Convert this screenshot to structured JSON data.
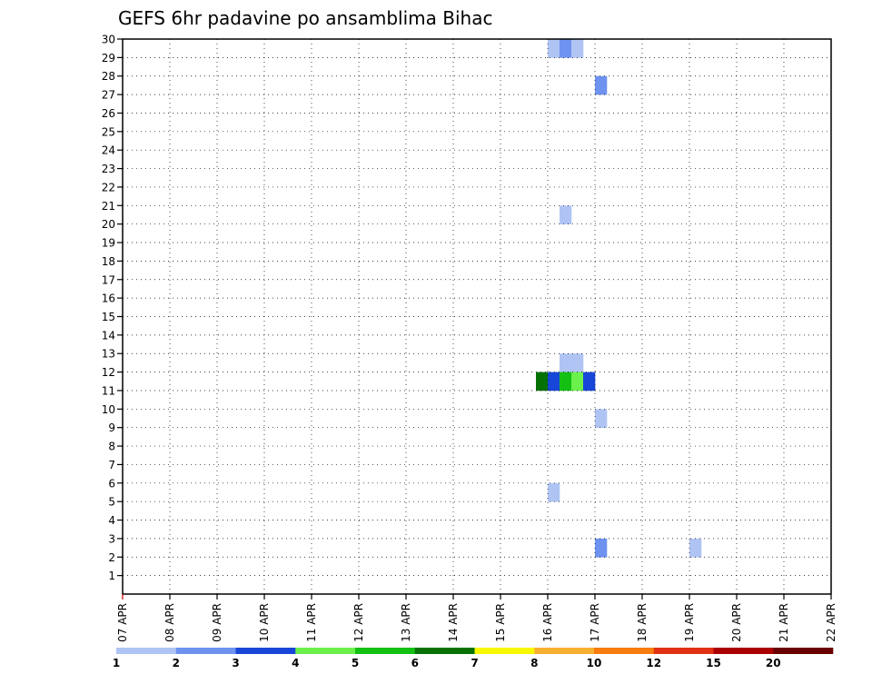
{
  "chart_data": {
    "type": "heatmap",
    "title": "GEFS 6hr padavine po ansamblima Bihac",
    "x_tick_labels": [
      "07 APR",
      "08 APR",
      "09 APR",
      "10 APR",
      "11 APR",
      "12 APR",
      "13 APR",
      "14 APR",
      "15 APR",
      "16 APR",
      "17 APR",
      "18 APR",
      "19 APR",
      "20 APR",
      "21 APR",
      "22 APR"
    ],
    "y_tick_labels": [
      "1",
      "2",
      "3",
      "4",
      "5",
      "6",
      "7",
      "8",
      "9",
      "10",
      "11",
      "12",
      "13",
      "14",
      "15",
      "16",
      "17",
      "18",
      "19",
      "20",
      "21",
      "22",
      "23",
      "24",
      "25",
      "26",
      "27",
      "28",
      "29",
      "30"
    ],
    "x_step_hours": 6,
    "y_range": [
      0,
      30
    ],
    "grid": true,
    "legend_position": "bottom",
    "legend": {
      "colors": [
        "#b0c4f4",
        "#6e92f0",
        "#1846d8",
        "#6cf04c",
        "#14c014",
        "#067206",
        "#f8f800",
        "#f8b030",
        "#f87c10",
        "#e03212",
        "#aa0000",
        "#6a0000"
      ],
      "labels": [
        "1",
        "2",
        "3",
        "4",
        "5",
        "6",
        "7",
        "8",
        "10",
        "12",
        "15",
        "20"
      ]
    },
    "cells": [
      [
        36,
        29,
        0
      ],
      [
        37,
        29,
        1
      ],
      [
        38,
        29,
        0
      ],
      [
        69,
        29,
        11
      ],
      [
        70,
        29,
        9
      ],
      [
        71,
        29,
        0
      ],
      [
        91,
        29,
        8
      ],
      [
        92,
        29,
        8
      ],
      [
        93,
        29,
        0
      ],
      [
        71,
        28,
        11
      ],
      [
        72,
        28,
        11
      ],
      [
        73,
        28,
        3
      ],
      [
        83,
        28,
        0
      ],
      [
        96,
        28,
        0
      ],
      [
        97,
        28,
        3
      ],
      [
        98,
        28,
        4
      ],
      [
        40,
        27,
        1
      ],
      [
        66,
        27,
        8
      ],
      [
        67,
        27,
        6
      ],
      [
        68,
        27,
        11
      ],
      [
        69,
        27,
        11
      ],
      [
        73,
        27,
        0
      ],
      [
        74,
        27,
        1
      ],
      [
        94,
        27,
        2
      ],
      [
        73,
        26,
        1
      ],
      [
        74,
        26,
        0
      ],
      [
        72,
        25,
        3
      ],
      [
        73,
        25,
        5
      ],
      [
        74,
        25,
        2
      ],
      [
        79,
        24,
        0
      ],
      [
        83,
        24,
        0
      ],
      [
        90,
        24,
        0
      ],
      [
        91,
        24,
        0
      ],
      [
        74,
        23,
        0
      ],
      [
        77,
        23,
        4
      ],
      [
        78,
        23,
        3
      ],
      [
        79,
        23,
        4
      ],
      [
        80,
        23,
        4
      ],
      [
        81,
        23,
        3
      ],
      [
        82,
        23,
        4
      ],
      [
        84,
        23,
        1
      ],
      [
        85,
        23,
        2
      ],
      [
        86,
        23,
        0
      ],
      [
        87,
        23,
        0
      ],
      [
        102,
        23,
        0
      ],
      [
        103,
        23,
        3
      ],
      [
        108,
        23,
        0
      ],
      [
        73,
        21,
        0
      ],
      [
        75,
        21,
        0
      ],
      [
        76,
        21,
        3
      ],
      [
        77,
        21,
        2
      ],
      [
        78,
        21,
        1
      ],
      [
        79,
        21,
        4
      ],
      [
        87,
        21,
        2
      ],
      [
        88,
        21,
        2
      ],
      [
        89,
        21,
        0
      ],
      [
        90,
        21,
        8
      ],
      [
        91,
        21,
        2
      ],
      [
        92,
        21,
        0
      ],
      [
        104,
        21,
        2
      ],
      [
        111,
        21,
        3
      ],
      [
        71,
        20,
        3
      ],
      [
        72,
        20,
        8
      ],
      [
        73,
        20,
        1
      ],
      [
        74,
        20,
        0
      ],
      [
        97,
        20,
        1
      ],
      [
        37,
        20,
        0
      ],
      [
        72,
        19,
        1
      ],
      [
        97,
        19,
        1
      ],
      [
        73,
        18,
        1
      ],
      [
        72,
        17,
        2
      ],
      [
        75,
        17,
        9
      ],
      [
        76,
        17,
        0
      ],
      [
        77,
        17,
        0
      ],
      [
        78,
        17,
        0
      ],
      [
        66,
        16,
        10
      ],
      [
        67,
        16,
        9
      ],
      [
        68,
        16,
        2
      ],
      [
        69,
        16,
        0
      ],
      [
        72,
        16,
        2
      ],
      [
        91,
        16,
        1
      ],
      [
        95,
        16,
        0
      ],
      [
        102,
        16,
        3
      ],
      [
        103,
        16,
        3
      ],
      [
        107,
        16,
        9
      ],
      [
        108,
        16,
        5
      ],
      [
        109,
        16,
        6
      ],
      [
        110,
        16,
        3
      ],
      [
        111,
        16,
        5
      ],
      [
        112,
        16,
        6
      ],
      [
        71,
        14,
        6
      ],
      [
        72,
        14,
        3
      ],
      [
        77,
        14,
        4
      ],
      [
        78,
        14,
        11
      ],
      [
        79,
        14,
        9
      ],
      [
        80,
        14,
        9
      ],
      [
        81,
        14,
        9
      ],
      [
        82,
        14,
        1
      ],
      [
        95,
        14,
        0
      ],
      [
        112,
        14,
        0
      ],
      [
        73,
        13,
        1
      ],
      [
        74,
        13,
        7
      ],
      [
        75,
        13,
        3
      ],
      [
        76,
        13,
        4
      ],
      [
        77,
        13,
        5
      ],
      [
        89,
        13,
        1
      ],
      [
        90,
        13,
        0
      ],
      [
        37,
        12,
        0
      ],
      [
        38,
        12,
        0
      ],
      [
        68,
        12,
        1
      ],
      [
        69,
        12,
        0
      ],
      [
        84,
        12,
        2
      ],
      [
        85,
        12,
        1
      ],
      [
        86,
        12,
        0
      ],
      [
        87,
        12,
        0
      ],
      [
        88,
        12,
        2
      ],
      [
        106,
        12,
        2
      ],
      [
        107,
        12,
        0
      ],
      [
        35,
        11,
        5
      ],
      [
        36,
        11,
        2
      ],
      [
        37,
        11,
        4
      ],
      [
        38,
        11,
        3
      ],
      [
        39,
        11,
        2
      ],
      [
        104,
        11,
        0
      ],
      [
        108,
        11,
        0
      ],
      [
        109,
        11,
        6
      ],
      [
        74,
        10,
        7
      ],
      [
        78,
        10,
        2
      ],
      [
        80,
        10,
        0
      ],
      [
        81,
        10,
        0
      ],
      [
        101,
        10,
        4
      ],
      [
        102,
        10,
        0
      ],
      [
        40,
        9,
        0
      ],
      [
        72,
        9,
        1
      ],
      [
        78,
        9,
        2
      ],
      [
        79,
        9,
        6
      ],
      [
        80,
        9,
        6
      ],
      [
        81,
        9,
        1
      ],
      [
        87,
        9,
        0
      ],
      [
        88,
        9,
        1
      ],
      [
        89,
        9,
        2
      ],
      [
        90,
        9,
        1
      ],
      [
        91,
        9,
        9
      ],
      [
        92,
        9,
        6
      ],
      [
        93,
        9,
        0
      ],
      [
        96,
        8,
        0
      ],
      [
        103,
        8,
        1
      ],
      [
        80,
        7,
        0
      ],
      [
        83,
        7,
        0
      ],
      [
        110,
        7,
        1
      ],
      [
        72,
        6,
        5
      ],
      [
        73,
        6,
        10
      ],
      [
        74,
        6,
        11
      ],
      [
        83,
        6,
        1
      ],
      [
        87,
        6,
        1
      ],
      [
        88,
        6,
        1
      ],
      [
        112,
        6,
        0
      ],
      [
        36,
        5,
        0
      ],
      [
        73,
        5,
        2
      ],
      [
        83,
        5,
        3
      ],
      [
        72,
        4,
        6
      ],
      [
        73,
        4,
        11
      ],
      [
        74,
        4,
        9
      ],
      [
        75,
        4,
        10
      ],
      [
        76,
        4,
        6
      ],
      [
        77,
        4,
        4
      ],
      [
        78,
        4,
        1
      ],
      [
        79,
        4,
        0
      ],
      [
        94,
        4,
        0
      ],
      [
        95,
        4,
        0
      ],
      [
        99,
        4,
        0
      ],
      [
        112,
        4,
        2
      ],
      [
        71,
        3,
        1
      ],
      [
        96,
        3,
        3
      ],
      [
        101,
        3,
        2
      ],
      [
        102,
        3,
        3
      ],
      [
        40,
        2,
        1
      ],
      [
        48,
        2,
        0
      ],
      [
        106,
        2,
        0
      ],
      [
        107,
        2,
        8
      ],
      [
        108,
        2,
        8
      ],
      [
        109,
        2,
        8
      ],
      [
        110,
        2,
        8
      ],
      [
        111,
        2,
        9
      ],
      [
        70,
        1,
        8
      ],
      [
        71,
        1,
        11
      ],
      [
        72,
        1,
        5
      ],
      [
        73,
        1,
        2
      ],
      [
        74,
        1,
        3
      ],
      [
        77,
        0,
        1
      ],
      [
        78,
        0,
        4
      ],
      [
        79,
        0,
        5
      ],
      [
        89,
        0,
        2
      ],
      [
        100,
        0,
        0
      ],
      [
        101,
        0,
        0
      ],
      [
        102,
        0,
        0
      ]
    ]
  }
}
